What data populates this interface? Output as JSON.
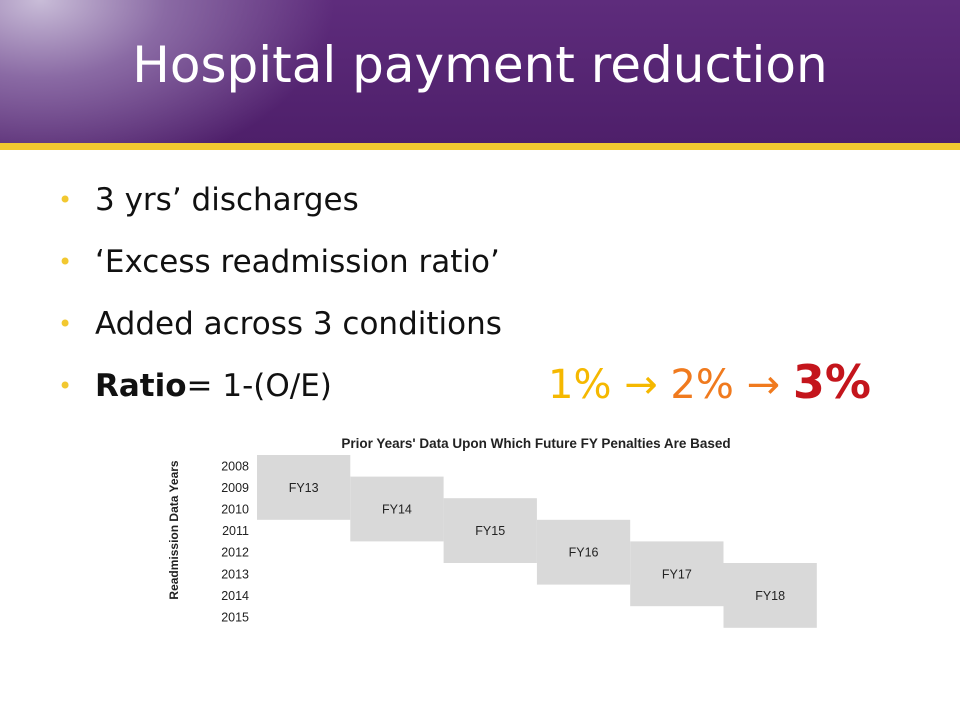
{
  "slide": {
    "title": "Hospital payment reduction",
    "bullets": [
      "3 yrs’ discharges",
      "‘Excess readmission ratio’",
      "Added across 3 conditions"
    ],
    "ratio_bold": "Ratio",
    "ratio_rest": "= 1-(O/E)",
    "bullet_char": "•"
  },
  "progression": {
    "step1": "1%",
    "step2": "2%",
    "step3": "3%",
    "arrow": "→",
    "colors": {
      "step1": "#f5b800",
      "step2": "#f07a1e",
      "step3": "#c4151c"
    }
  },
  "colors": {
    "banner": "#5e2c7c",
    "accent": "#f2c830",
    "block": "#d9d9d9"
  },
  "chart_data": {
    "type": "table",
    "title": "Prior Years' Data Upon Which Future FY Penalties Are Based",
    "ylabel": "Readmission Data Years",
    "years": [
      "2008",
      "2009",
      "2010",
      "2011",
      "2012",
      "2013",
      "2014",
      "2015"
    ],
    "penalties": [
      {
        "label": "FY13",
        "start_year": "2008",
        "end_year": "2010"
      },
      {
        "label": "FY14",
        "start_year": "2009",
        "end_year": "2011"
      },
      {
        "label": "FY15",
        "start_year": "2010",
        "end_year": "2012"
      },
      {
        "label": "FY16",
        "start_year": "2011",
        "end_year": "2013"
      },
      {
        "label": "FY17",
        "start_year": "2012",
        "end_year": "2014"
      },
      {
        "label": "FY18",
        "start_year": "2013",
        "end_year": "2015"
      }
    ]
  }
}
